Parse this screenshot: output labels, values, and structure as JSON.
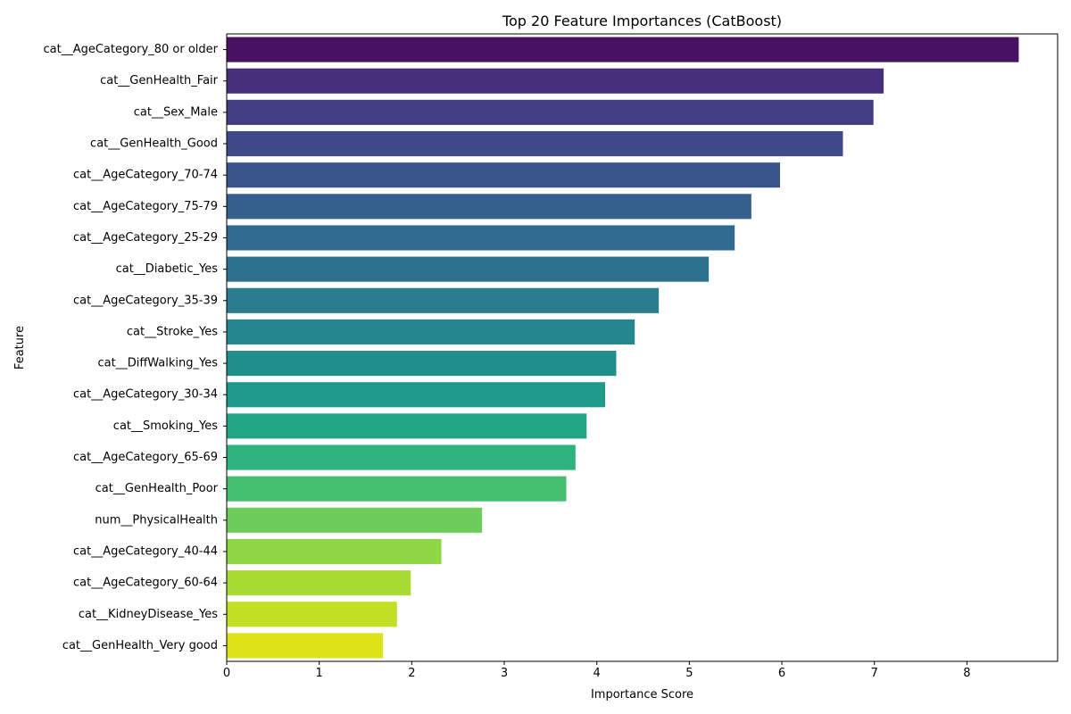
{
  "chart_data": {
    "type": "bar",
    "orientation": "horizontal",
    "title": "Top 20 Feature Importances (CatBoost)",
    "xlabel": "Importance Score",
    "ylabel": "Feature",
    "xlim": [
      0,
      8.98
    ],
    "xticks": [
      0,
      1,
      2,
      3,
      4,
      5,
      6,
      7,
      8
    ],
    "xtick_labels": [
      "0",
      "1",
      "2",
      "3",
      "4",
      "5",
      "6",
      "7",
      "8"
    ],
    "grid": false,
    "colormap": "viridis",
    "categories": [
      "cat__AgeCategory_80 or older",
      "cat__GenHealth_Fair",
      "cat__Sex_Male",
      "cat__GenHealth_Good",
      "cat__AgeCategory_70-74",
      "cat__AgeCategory_75-79",
      "cat__AgeCategory_25-29",
      "cat__Diabetic_Yes",
      "cat__AgeCategory_35-39",
      "cat__Stroke_Yes",
      "cat__DiffWalking_Yes",
      "cat__AgeCategory_30-34",
      "cat__Smoking_Yes",
      "cat__AgeCategory_65-69",
      "cat__GenHealth_Poor",
      "num__PhysicalHealth",
      "cat__AgeCategory_40-44",
      "cat__AgeCategory_60-64",
      "cat__KidneyDisease_Yes",
      "cat__GenHealth_Very good"
    ],
    "values": [
      8.56,
      7.1,
      6.99,
      6.66,
      5.98,
      5.67,
      5.49,
      5.21,
      4.67,
      4.41,
      4.21,
      4.09,
      3.89,
      3.77,
      3.67,
      2.76,
      2.32,
      1.99,
      1.84,
      1.69
    ],
    "colors": [
      "#471164",
      "#472f7d",
      "#433d84",
      "#3e4989",
      "#3a548c",
      "#355f8d",
      "#306a8e",
      "#2c728e",
      "#287d8e",
      "#24868e",
      "#208f8c",
      "#1f9a8a",
      "#21a585",
      "#2eb37c",
      "#44bf70",
      "#6ccd5a",
      "#8ed645",
      "#a8db34",
      "#c2df23",
      "#dde318"
    ]
  }
}
